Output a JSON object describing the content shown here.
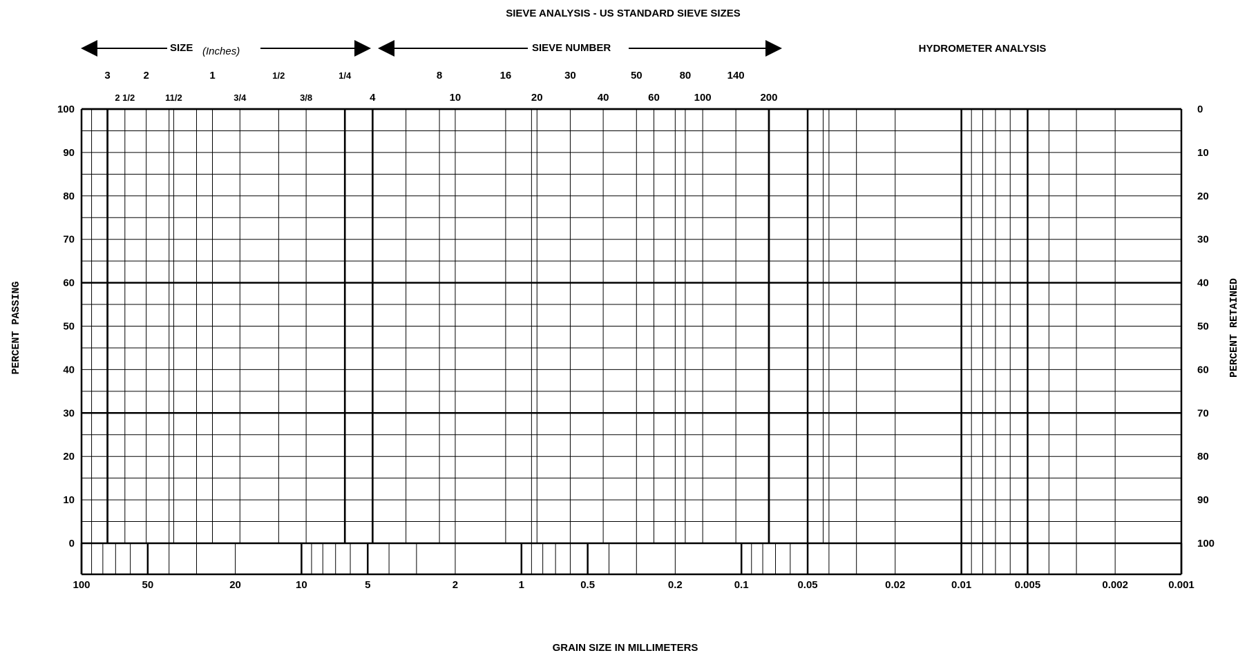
{
  "chart_data": {
    "type": "line",
    "title": "SIEVE ANALYSIS - US STANDARD SIEVE SIZES",
    "xlabel": "GRAIN SIZE IN MILLIMETERS",
    "ylabel": "PERCENT PASSING",
    "ylabel_right": "PERCENT RETAINED",
    "x_scale": "log",
    "x_reversed": true,
    "xlim": [
      100,
      0.001
    ],
    "ylim": [
      0,
      100
    ],
    "grid": true,
    "series": [],
    "header_size_label": "SIZE",
    "header_size_unit": "(Inches)",
    "header_sieve_label": "SIEVE NUMBER",
    "header_hydrometer_label": "HYDROMETER ANALYSIS",
    "x_ticks": [
      {
        "label": "100",
        "value": 100
      },
      {
        "label": "50",
        "value": 50
      },
      {
        "label": "20",
        "value": 20
      },
      {
        "label": "10",
        "value": 10
      },
      {
        "label": "5",
        "value": 5
      },
      {
        "label": "2",
        "value": 2
      },
      {
        "label": "1",
        "value": 1
      },
      {
        "label": "0.5",
        "value": 0.5
      },
      {
        "label": "0.2",
        "value": 0.2
      },
      {
        "label": "0.1",
        "value": 0.1
      },
      {
        "label": "0.05",
        "value": 0.05
      },
      {
        "label": "0.02",
        "value": 0.02
      },
      {
        "label": "0.01",
        "value": 0.01
      },
      {
        "label": "0.005",
        "value": 0.005
      },
      {
        "label": "0.002",
        "value": 0.002
      },
      {
        "label": "0.001",
        "value": 0.001
      }
    ],
    "y_ticks_left": [
      "100",
      "90",
      "80",
      "70",
      "60",
      "50",
      "40",
      "30",
      "20",
      "10",
      "0"
    ],
    "y_ticks_right": [
      "0",
      "10",
      "20",
      "30",
      "40",
      "50",
      "60",
      "70",
      "80",
      "90",
      "100"
    ],
    "inch_sizes_top_row": [
      {
        "label": "3",
        "mm": 76.2
      },
      {
        "label": "2",
        "mm": 50.8
      },
      {
        "label": "1",
        "mm": 25.4
      },
      {
        "label": "1/2",
        "mm": 12.7
      },
      {
        "label": "1/4",
        "mm": 6.35
      }
    ],
    "inch_sizes_bottom_row": [
      {
        "label": "2 1/2",
        "mm": 63.5
      },
      {
        "label": "11/2",
        "mm": 38.1
      },
      {
        "label": "3/4",
        "mm": 19.05
      },
      {
        "label": "3/8",
        "mm": 9.525
      }
    ],
    "sieve_numbers_top_row": [
      {
        "label": "8",
        "mm": 2.36
      },
      {
        "label": "16",
        "mm": 1.18
      },
      {
        "label": "30",
        "mm": 0.6
      },
      {
        "label": "50",
        "mm": 0.3
      },
      {
        "label": "80",
        "mm": 0.18
      },
      {
        "label": "140",
        "mm": 0.106
      }
    ],
    "sieve_numbers_bottom_row": [
      {
        "label": "4",
        "mm": 4.75
      },
      {
        "label": "10",
        "mm": 2.0
      },
      {
        "label": "20",
        "mm": 0.85
      },
      {
        "label": "40",
        "mm": 0.425
      },
      {
        "label": "60",
        "mm": 0.25
      },
      {
        "label": "100",
        "mm": 0.15
      },
      {
        "label": "200",
        "mm": 0.075
      }
    ],
    "bold_vertical_lines_mm": [
      76.2,
      6.35,
      4.75,
      0.075,
      0.05,
      0.01,
      0.005
    ]
  }
}
